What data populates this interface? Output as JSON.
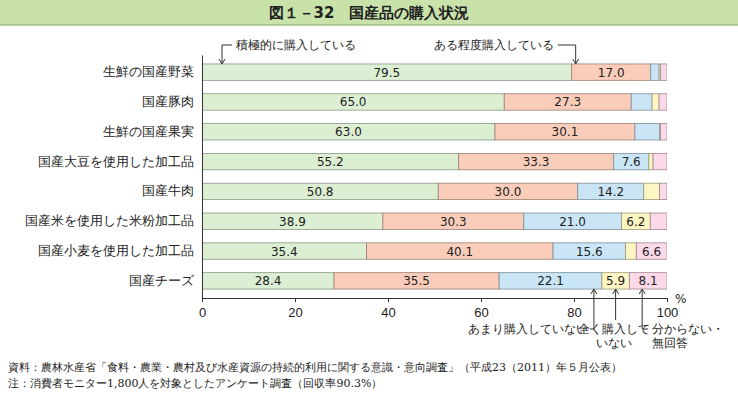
{
  "chart_data": {
    "type": "bar",
    "orientation": "horizontal",
    "stacked": true,
    "data_labels": true,
    "grid": false,
    "title": "図１－32　国産品の購入状況",
    "xlabel": "%",
    "xlim": [
      0,
      100
    ],
    "xticks": [
      0,
      20,
      40,
      60,
      80,
      100
    ],
    "categories": [
      "生鮮の国産野菜",
      "国産豚肉",
      "生鮮の国産果実",
      "国産大豆を使用した加工品",
      "国産牛肉",
      "国産米を使用した米粉加工品",
      "国産小麦を使用した加工品",
      "国産チーズ"
    ],
    "series": [
      {
        "name": "積極的に購入している",
        "color": "#dcefd3",
        "values": [
          79.5,
          65.0,
          63.0,
          55.2,
          50.8,
          38.9,
          35.4,
          28.4
        ],
        "value_labels": [
          "79.5",
          "65.0",
          "63.0",
          "55.2",
          "50.8",
          "38.9",
          "35.4",
          "28.4"
        ]
      },
      {
        "name": "ある程度購入している",
        "color": "#f9cdb9",
        "values": [
          17.0,
          27.3,
          30.1,
          33.3,
          30.0,
          30.3,
          40.1,
          35.5
        ],
        "value_labels": [
          "17.0",
          "27.3",
          "30.1",
          "33.3",
          "30.0",
          "30.3",
          "40.1",
          "35.5"
        ]
      },
      {
        "name": "あまり購入していない",
        "color": "#c9e5f6",
        "values": [
          1.8,
          4.5,
          5.3,
          7.6,
          14.2,
          21.0,
          15.6,
          22.1
        ],
        "value_labels": [
          null,
          null,
          null,
          "7.6",
          "14.2",
          "21.0",
          "15.6",
          "22.1"
        ]
      },
      {
        "name": "全く購入していない",
        "color": "#fdf6c3",
        "values": [
          0.3,
          1.5,
          0.2,
          0.9,
          3.4,
          6.2,
          2.3,
          5.9
        ],
        "value_labels": [
          null,
          null,
          null,
          null,
          null,
          "6.2",
          null,
          "5.9"
        ]
      },
      {
        "name": "分からない・無回答",
        "color": "#fbd9e8",
        "values": [
          1.4,
          1.7,
          1.4,
          3.0,
          1.6,
          3.6,
          6.6,
          8.1
        ],
        "value_labels": [
          null,
          null,
          null,
          null,
          null,
          null,
          "6.6",
          "8.1"
        ]
      }
    ],
    "notes": [
      "資料：農林水産省「食料・農業・農村及び水産資源の持続的利用に関する意識・意向調査」（平成23（2011）年５月公表）",
      "注：消費者モニター1,800人を対象としたアンケート調査（回収率90.3%）"
    ]
  }
}
